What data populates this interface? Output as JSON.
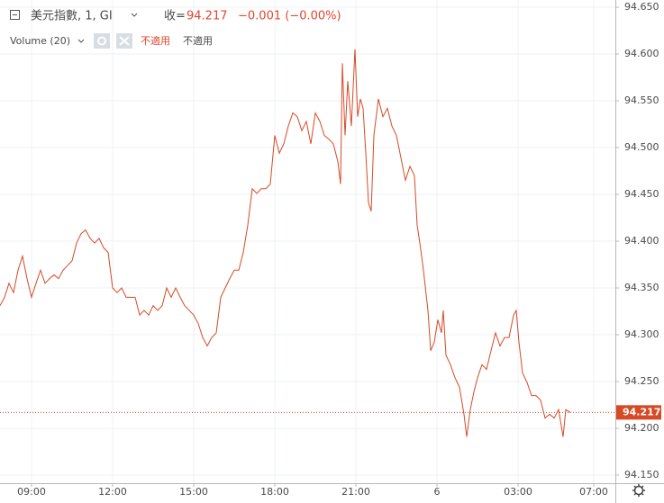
{
  "chart_data": {
    "type": "line",
    "title": "美元指數, 1, GI",
    "close_label": "收=",
    "change": "−0.001 (−0.00%)",
    "volume_label": "Volume (20)",
    "volume_na": [
      "不適用",
      "不適用"
    ],
    "color": "#d64a26",
    "last_value": 94.217,
    "grid": true,
    "xlim": [
      470,
      1836
    ],
    "xticks": [
      {
        "value": 540,
        "label": "09:00"
      },
      {
        "value": 720,
        "label": "12:00"
      },
      {
        "value": 900,
        "label": "15:00"
      },
      {
        "value": 1080,
        "label": "18:00"
      },
      {
        "value": 1260,
        "label": "21:00"
      },
      {
        "value": 1440,
        "label": "6"
      },
      {
        "value": 1620,
        "label": "03:00"
      },
      {
        "value": 1788,
        "label": "07:00"
      }
    ],
    "ylim": [
      94.15,
      94.65
    ],
    "yticks": [
      {
        "value": 94.65,
        "label": "94.650"
      },
      {
        "value": 94.6,
        "label": "94.600"
      },
      {
        "value": 94.55,
        "label": "94.550"
      },
      {
        "value": 94.5,
        "label": "94.500"
      },
      {
        "value": 94.45,
        "label": "94.450"
      },
      {
        "value": 94.4,
        "label": "94.400"
      },
      {
        "value": 94.35,
        "label": "94.350"
      },
      {
        "value": 94.3,
        "label": "94.300"
      },
      {
        "value": 94.25,
        "label": "94.250"
      },
      {
        "value": 94.2,
        "label": "94.200"
      },
      {
        "value": 94.15,
        "label": "94.150"
      }
    ],
    "x": [
      470,
      480,
      490,
      500,
      510,
      520,
      530,
      540,
      550,
      560,
      570,
      580,
      590,
      600,
      610,
      620,
      630,
      640,
      650,
      660,
      670,
      680,
      690,
      700,
      710,
      720,
      730,
      740,
      750,
      760,
      770,
      780,
      790,
      800,
      810,
      820,
      830,
      840,
      850,
      860,
      870,
      880,
      890,
      900,
      910,
      920,
      930,
      940,
      950,
      960,
      970,
      980,
      990,
      1000,
      1010,
      1020,
      1030,
      1040,
      1050,
      1060,
      1070,
      1080,
      1090,
      1100,
      1110,
      1120,
      1130,
      1140,
      1150,
      1160,
      1170,
      1180,
      1190,
      1200,
      1210,
      1220,
      1226,
      1230,
      1236,
      1242,
      1250,
      1258,
      1264,
      1270,
      1276,
      1282,
      1288,
      1294,
      1300,
      1310,
      1320,
      1330,
      1340,
      1350,
      1360,
      1370,
      1380,
      1390,
      1396,
      1402,
      1410,
      1420,
      1426,
      1434,
      1442,
      1450,
      1454,
      1460,
      1470,
      1480,
      1490,
      1500,
      1506,
      1514,
      1522,
      1530,
      1540,
      1550,
      1560,
      1570,
      1580,
      1590,
      1600,
      1610,
      1616,
      1622,
      1630,
      1640,
      1650,
      1660,
      1670,
      1680,
      1690,
      1700,
      1710,
      1720,
      1726,
      1736
    ],
    "values": [
      94.331,
      94.34,
      94.355,
      94.345,
      94.369,
      94.384,
      94.36,
      94.34,
      94.355,
      94.369,
      94.355,
      94.36,
      94.364,
      94.36,
      94.369,
      94.374,
      94.379,
      94.398,
      94.408,
      94.412,
      94.403,
      94.398,
      94.403,
      94.393,
      94.388,
      94.35,
      94.345,
      94.35,
      94.34,
      94.34,
      94.34,
      94.321,
      94.326,
      94.321,
      94.331,
      94.326,
      94.331,
      94.35,
      94.34,
      94.35,
      94.34,
      94.331,
      94.326,
      94.321,
      94.312,
      94.297,
      94.288,
      94.297,
      94.302,
      94.34,
      94.35,
      94.36,
      94.369,
      94.369,
      94.388,
      94.417,
      94.456,
      94.451,
      94.456,
      94.456,
      94.461,
      94.513,
      94.494,
      94.504,
      94.523,
      94.537,
      94.533,
      94.518,
      94.528,
      94.504,
      94.537,
      94.528,
      94.513,
      94.509,
      94.504,
      94.485,
      94.461,
      94.59,
      94.513,
      94.571,
      94.523,
      94.605,
      94.533,
      94.552,
      94.542,
      94.494,
      94.441,
      94.432,
      94.513,
      94.552,
      94.533,
      94.542,
      94.523,
      94.513,
      94.489,
      94.465,
      94.48,
      94.47,
      94.417,
      94.398,
      94.369,
      94.326,
      94.283,
      94.292,
      94.316,
      94.302,
      94.326,
      94.278,
      94.268,
      94.254,
      94.244,
      94.215,
      94.191,
      94.22,
      94.239,
      94.254,
      94.268,
      94.263,
      94.283,
      94.302,
      94.288,
      94.297,
      94.297,
      94.321,
      94.326,
      94.292,
      94.259,
      94.249,
      94.235,
      94.235,
      94.23,
      94.211,
      94.215,
      94.211,
      94.22,
      94.191,
      94.22,
      94.217
    ]
  }
}
